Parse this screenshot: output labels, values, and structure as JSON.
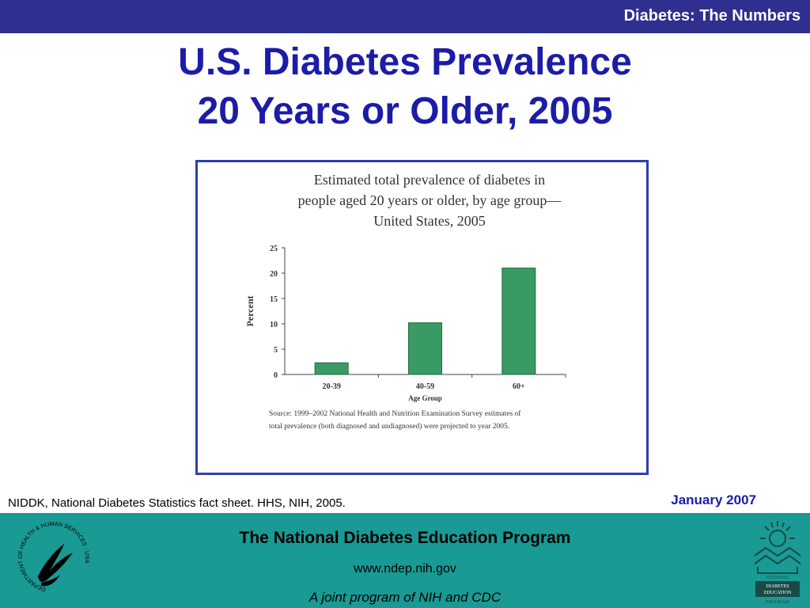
{
  "header": {
    "section_title": "Diabetes: The Numbers"
  },
  "slide": {
    "title_line1": "U.S. Diabetes Prevalence",
    "title_line2": "20 Years or Older, 2005"
  },
  "chart_data": {
    "type": "bar",
    "title_lines": [
      "Estimated total prevalence of diabetes in",
      "people aged 20 years or older, by age group—",
      "United States, 2005"
    ],
    "categories": [
      "20-39",
      "40-59",
      "60+"
    ],
    "values": [
      2.3,
      10.2,
      21.0
    ],
    "xlabel": "Age Group",
    "ylabel": "Percent",
    "ylim": [
      0,
      25
    ],
    "yticks": [
      "0",
      "5",
      "10",
      "15",
      "20",
      "25"
    ],
    "grid": false,
    "bar_color": "#3a9a64",
    "source_lines": [
      "Source: 1999–2002 National Health and Nutrition Examination Survey estimates of",
      "total prevalence (both diagnosed and undiagnosed) were projected to year 2005."
    ]
  },
  "citation": "NIDDK, National Diabetes Statistics fact sheet. HHS, NIH, 2005.",
  "date": "January 2007",
  "footer": {
    "org": "The National Diabetes Education Program",
    "url": "www.ndep.nih.gov",
    "joint": "A joint program of NIH and CDC"
  },
  "logos": {
    "hhs_seal_text": "DEPARTMENT OF HEALTH & HUMAN SERVICES · USA",
    "ndep_lines": [
      "NATIONAL",
      "DIABETES",
      "EDUCATION",
      "PROGRAM"
    ]
  },
  "colors": {
    "topbar": "#2e2f8e",
    "title": "#1c1ca8",
    "footer": "#199a94",
    "frame": "#2f3fa8"
  }
}
